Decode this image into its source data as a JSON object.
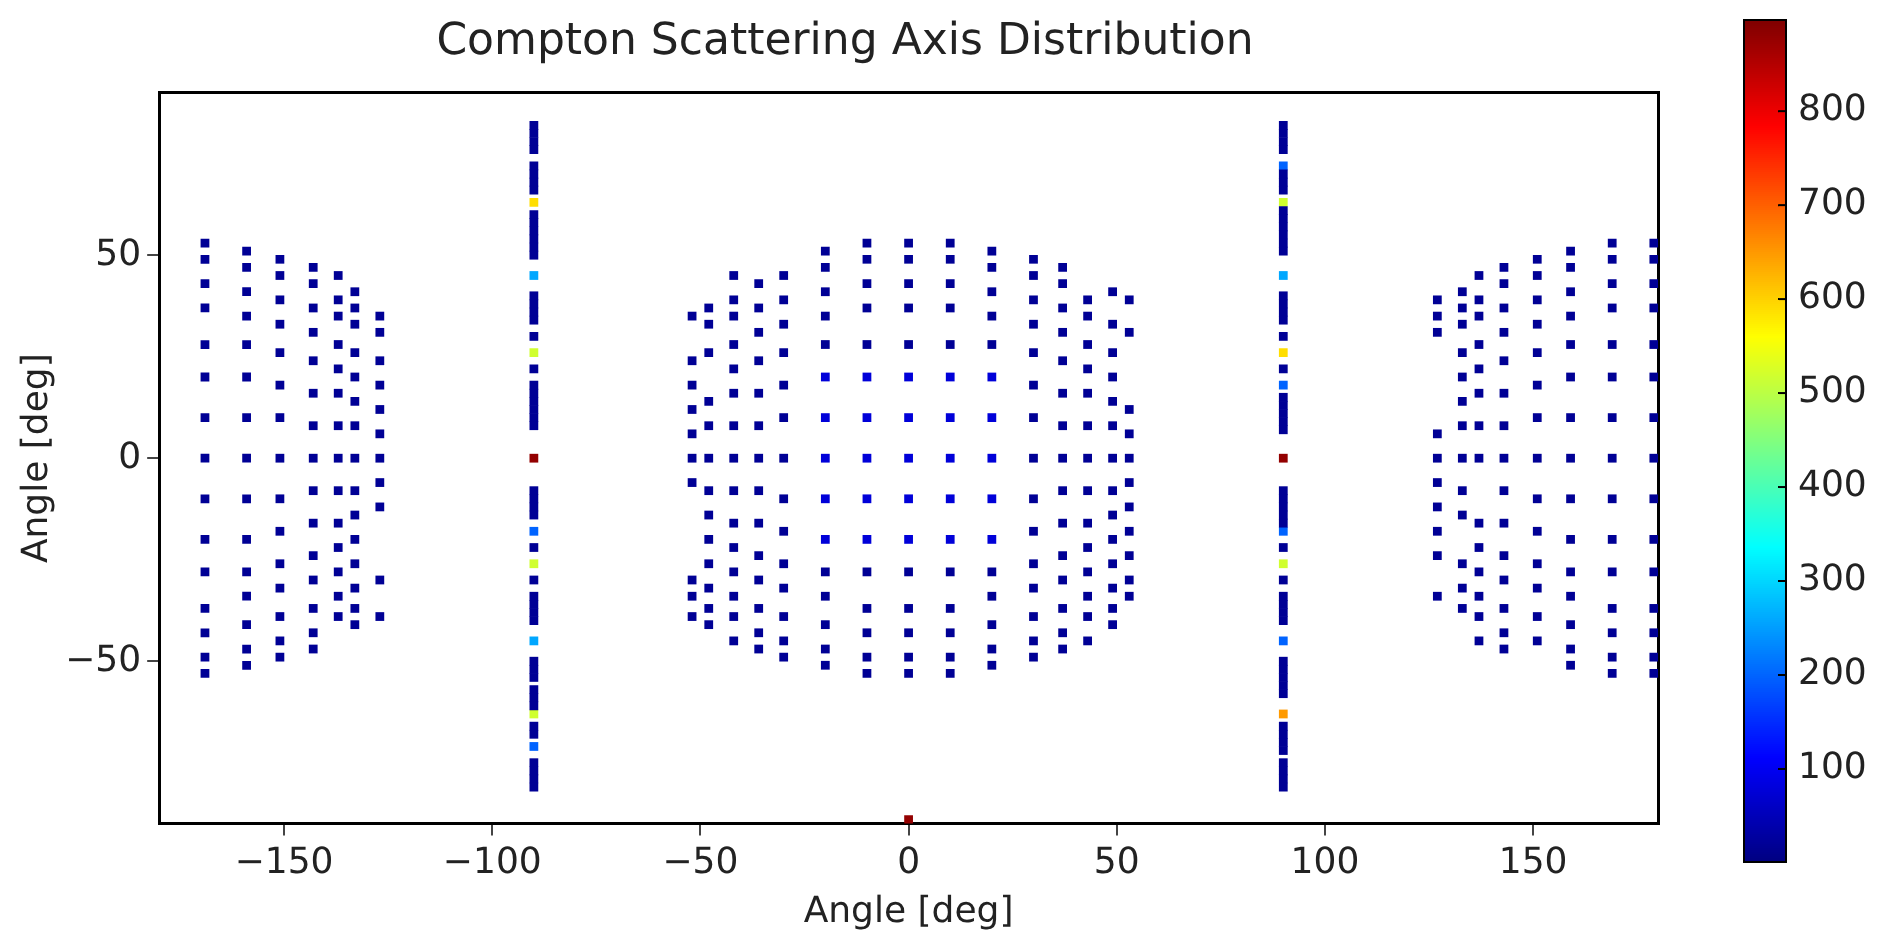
{
  "chart_data": {
    "type": "scatter",
    "title": "Compton Scattering Axis Distribution",
    "xlabel": "Angle [deg]",
    "ylabel": "Angle [deg]",
    "xlim": [
      -180,
      180
    ],
    "ylim": [
      -90,
      90
    ],
    "xticks": [
      {
        "value": -150,
        "label": "−150"
      },
      {
        "value": -100,
        "label": "−100"
      },
      {
        "value": -50,
        "label": "−50"
      },
      0,
      50,
      100,
      150
    ],
    "yticks": [
      {
        "value": -50,
        "label": "−50"
      },
      0,
      50
    ],
    "clim": [
      1,
      897
    ],
    "cticks": [
      100,
      200,
      300,
      400,
      500,
      600,
      700,
      800
    ],
    "grid": false,
    "legend": false,
    "marker": "square",
    "series": [
      {
        "x": [
          -169,
          -169,
          -169,
          -169,
          -169,
          -169,
          -169,
          -169,
          -169,
          -169,
          -169,
          -169,
          -169,
          -169,
          -169
        ],
        "values": [
          53,
          49,
          43,
          37,
          28,
          20,
          10,
          0,
          -10,
          -20,
          -28,
          -37,
          -43,
          -49,
          -53
        ],
        "cvalues": [
          20,
          20,
          20,
          20,
          20,
          20,
          20,
          20,
          20,
          20,
          20,
          20,
          20,
          20,
          20
        ]
      },
      {
        "x": [
          -159,
          -159,
          -159,
          -159,
          -159,
          -159,
          -159,
          -159,
          -159,
          -159,
          -159,
          -159,
          -159,
          -159,
          -159
        ],
        "values": [
          51,
          47,
          41,
          35,
          28,
          20,
          10,
          0,
          -10,
          -20,
          -28,
          -34,
          -41,
          -47,
          -51
        ],
        "cvalues": [
          20,
          20,
          20,
          20,
          20,
          20,
          20,
          20,
          20,
          20,
          20,
          20,
          20,
          20,
          20
        ]
      },
      {
        "x": [
          -151,
          -151,
          -151,
          -151,
          -151,
          -151,
          -151,
          -151,
          -151,
          -151,
          -151,
          -151,
          -151,
          -151,
          -151
        ],
        "values": [
          49,
          45,
          39,
          33,
          26,
          18,
          10,
          0,
          -10,
          -18,
          -26,
          -32,
          -39,
          -45,
          -49
        ],
        "cvalues": [
          20,
          20,
          20,
          20,
          20,
          20,
          20,
          20,
          20,
          20,
          20,
          20,
          20,
          20,
          20
        ]
      },
      {
        "x": [
          -143,
          -143,
          -143,
          -143,
          -143,
          -143,
          -143,
          -143,
          -143,
          -143,
          -143,
          -143,
          -143,
          -143,
          -143
        ],
        "values": [
          47,
          43,
          37,
          31,
          24,
          16,
          8,
          0,
          -8,
          -16,
          -24,
          -30,
          -37,
          -43,
          -47
        ],
        "cvalues": [
          20,
          20,
          20,
          20,
          20,
          20,
          20,
          20,
          20,
          20,
          20,
          20,
          20,
          20,
          20
        ]
      },
      {
        "x": [
          -137,
          -137,
          -137,
          -137,
          -137,
          -137,
          -137,
          -137,
          -137,
          -137,
          -137,
          -137,
          -137,
          -137
        ],
        "values": [
          45,
          39,
          35,
          28,
          22,
          16,
          8,
          0,
          -8,
          -16,
          -22,
          -28,
          -34,
          -39
        ],
        "cvalues": [
          20,
          20,
          20,
          20,
          20,
          20,
          20,
          20,
          20,
          20,
          20,
          20,
          20,
          20
        ]
      },
      {
        "x": [
          -133,
          -133,
          -133,
          -133,
          -133,
          -133,
          -133,
          -133,
          -133,
          -133,
          -133,
          -133,
          -133,
          -133,
          -133
        ],
        "values": [
          41,
          37,
          33,
          26,
          20,
          14,
          8,
          0,
          -8,
          -14,
          -20,
          -26,
          -32,
          -37,
          -41
        ],
        "cvalues": [
          20,
          20,
          20,
          20,
          20,
          20,
          20,
          20,
          20,
          20,
          20,
          20,
          20,
          20,
          20
        ]
      },
      {
        "x": [
          -127,
          -127,
          -127,
          -127,
          -127,
          -127,
          -127,
          -127,
          -127,
          -127,
          -127
        ],
        "values": [
          35,
          31,
          24,
          18,
          12,
          6,
          0,
          -6,
          -12,
          -30,
          -39
        ],
        "cvalues": [
          20,
          20,
          20,
          20,
          20,
          20,
          20,
          20,
          20,
          20,
          20
        ]
      },
      {
        "x": [
          -90,
          -90,
          -90,
          -90,
          -90,
          -90,
          -90,
          -90,
          -90,
          -90,
          -90,
          -90,
          -90,
          -90,
          -90,
          -90,
          -90,
          -90,
          -90,
          -90,
          -90,
          -90,
          -90,
          -90,
          -90,
          -90,
          -90,
          -90,
          -90,
          -90,
          -90,
          -90,
          -90,
          -90,
          -90,
          -90,
          -90,
          -90,
          -90,
          -90,
          -90,
          -90,
          -90,
          -90,
          -90,
          -90,
          -90,
          -90
        ],
        "values": [
          82,
          80,
          78,
          76,
          72,
          70,
          68,
          66,
          60,
          58,
          56,
          54,
          52,
          50,
          40,
          38,
          36,
          34,
          30,
          22,
          18,
          16,
          14,
          12,
          10,
          8,
          -8,
          -10,
          -12,
          -14,
          -22,
          -30,
          -34,
          -36,
          -38,
          -40,
          -50,
          -52,
          -54,
          -57,
          -59,
          -61,
          -66,
          -68,
          -75,
          -77,
          -79,
          -81
        ],
        "cvalues": [
          20,
          20,
          20,
          20,
          20,
          20,
          20,
          20,
          20,
          20,
          20,
          20,
          20,
          20,
          20,
          20,
          20,
          20,
          20,
          20,
          20,
          20,
          20,
          20,
          20,
          20,
          20,
          20,
          20,
          20,
          20,
          20,
          20,
          20,
          20,
          20,
          20,
          20,
          20,
          20,
          20,
          20,
          20,
          20,
          20,
          20,
          20,
          20
        ]
      },
      {
        "x": [
          -52,
          -52,
          -52,
          -52,
          -52,
          -52,
          -52,
          -52,
          -52,
          -52
        ],
        "values": [
          35,
          24,
          18,
          12,
          6,
          0,
          -6,
          -30,
          -34,
          -39
        ],
        "cvalues": [
          20,
          20,
          20,
          20,
          20,
          20,
          20,
          20,
          20,
          20
        ]
      },
      {
        "x": [
          -48,
          -48,
          -48,
          -48,
          -48,
          -48,
          -48,
          -48,
          -48,
          -48,
          -48,
          -48,
          -48
        ],
        "values": [
          37,
          33,
          26,
          14,
          8,
          0,
          -8,
          -14,
          -20,
          -26,
          -32,
          -37,
          -41
        ],
        "cvalues": [
          20,
          20,
          20,
          20,
          20,
          20,
          20,
          20,
          20,
          20,
          20,
          20,
          20
        ]
      },
      {
        "x": [
          -42,
          -42,
          -42,
          -42,
          -42,
          -42,
          -42,
          -42,
          -42,
          -42,
          -42,
          -42,
          -42,
          -42,
          -42
        ],
        "values": [
          45,
          39,
          35,
          28,
          22,
          16,
          8,
          0,
          -8,
          -16,
          -22,
          -28,
          -34,
          -39,
          -45
        ],
        "cvalues": [
          20,
          20,
          20,
          20,
          20,
          20,
          20,
          20,
          20,
          20,
          20,
          20,
          20,
          20,
          20
        ]
      },
      {
        "x": [
          -36,
          -36,
          -36,
          -36,
          -36,
          -36,
          -36,
          -36,
          -36,
          -36,
          -36,
          -36,
          -36,
          -36
        ],
        "values": [
          43,
          37,
          31,
          24,
          16,
          8,
          0,
          -8,
          -16,
          -24,
          -30,
          -37,
          -43,
          -47
        ],
        "cvalues": [
          20,
          20,
          20,
          20,
          20,
          20,
          20,
          20,
          20,
          20,
          20,
          20,
          20,
          20
        ]
      },
      {
        "x": [
          -30,
          -30,
          -30,
          -30,
          -30,
          -30,
          -30,
          -30,
          -30,
          -30,
          -30,
          -30,
          -30,
          -30
        ],
        "values": [
          45,
          39,
          33,
          26,
          18,
          10,
          0,
          -10,
          -18,
          -26,
          -32,
          -39,
          -45,
          -49
        ],
        "cvalues": [
          20,
          20,
          20,
          20,
          20,
          20,
          20,
          20,
          20,
          20,
          20,
          20,
          20,
          20
        ]
      },
      {
        "x": [
          -20,
          -20,
          -20,
          -20,
          -20,
          -20,
          -20,
          -20,
          -20,
          -20
        ],
        "values": [
          51,
          47,
          41,
          35,
          28,
          -28,
          -34,
          -41,
          -47,
          -51
        ],
        "cvalues": [
          20,
          20,
          20,
          20,
          20,
          20,
          20,
          20,
          20,
          20
        ]
      },
      {
        "x": [
          -10,
          -10,
          -10,
          -10,
          -10,
          -10,
          -10,
          -10,
          -10,
          -10
        ],
        "values": [
          53,
          49,
          43,
          37,
          28,
          -28,
          -37,
          -43,
          -49,
          -53
        ],
        "cvalues": [
          20,
          20,
          20,
          20,
          20,
          20,
          20,
          20,
          20,
          20
        ]
      },
      {
        "x": [
          0,
          0,
          0,
          0,
          0,
          0,
          0,
          0,
          0,
          0
        ],
        "values": [
          53,
          49,
          43,
          37,
          28,
          -28,
          -37,
          -43,
          -49,
          -53
        ],
        "cvalues": [
          20,
          20,
          20,
          20,
          20,
          20,
          20,
          20,
          20,
          20
        ]
      },
      {
        "x": [
          10,
          10,
          10,
          10,
          10,
          10,
          10,
          10,
          10,
          10
        ],
        "values": [
          53,
          49,
          43,
          37,
          28,
          -28,
          -37,
          -43,
          -49,
          -53
        ],
        "cvalues": [
          20,
          20,
          20,
          20,
          20,
          20,
          20,
          20,
          20,
          20
        ]
      },
      {
        "x": [
          20,
          20,
          20,
          20,
          20,
          20,
          20,
          20,
          20,
          20
        ],
        "values": [
          51,
          47,
          41,
          35,
          28,
          -28,
          -34,
          -41,
          -47,
          -51
        ],
        "cvalues": [
          20,
          20,
          20,
          20,
          20,
          20,
          20,
          20,
          20,
          20
        ]
      },
      {
        "x": [
          -20,
          -20,
          -20,
          -20,
          -20,
          -10,
          -10,
          -10,
          -10,
          -10,
          0,
          0,
          0,
          0,
          0,
          10,
          10,
          10,
          10,
          10,
          20,
          20,
          20,
          20,
          20
        ],
        "values": [
          20,
          10,
          0,
          -10,
          -20,
          20,
          10,
          0,
          -10,
          -20,
          20,
          10,
          0,
          -10,
          -20,
          20,
          10,
          0,
          -10,
          -20,
          20,
          10,
          0,
          -10,
          -20
        ],
        "cvalues": [
          80,
          80,
          80,
          80,
          80,
          80,
          80,
          80,
          80,
          80,
          80,
          80,
          80,
          80,
          80,
          80,
          80,
          80,
          80,
          80,
          80,
          80,
          80,
          80,
          80
        ]
      },
      {
        "x": [
          30,
          30,
          30,
          30,
          30,
          30,
          30,
          30,
          30,
          30,
          30,
          30,
          30,
          30,
          30
        ],
        "values": [
          49,
          45,
          39,
          33,
          26,
          18,
          10,
          0,
          -10,
          -18,
          -26,
          -32,
          -39,
          -45,
          -49
        ],
        "cvalues": [
          20,
          20,
          20,
          20,
          20,
          20,
          20,
          20,
          20,
          20,
          20,
          20,
          20,
          20,
          20
        ]
      },
      {
        "x": [
          37,
          37,
          37,
          37,
          37,
          37,
          37,
          37,
          37,
          37,
          37,
          37,
          37,
          37,
          37
        ],
        "values": [
          47,
          43,
          37,
          31,
          24,
          16,
          8,
          0,
          -8,
          -16,
          -24,
          -30,
          -37,
          -43,
          -47
        ],
        "cvalues": [
          20,
          20,
          20,
          20,
          20,
          20,
          20,
          20,
          20,
          20,
          20,
          20,
          20,
          20,
          20
        ]
      },
      {
        "x": [
          43,
          43,
          43,
          43,
          43,
          43,
          43,
          43,
          43,
          43,
          43,
          43,
          43,
          43
        ],
        "values": [
          39,
          35,
          28,
          22,
          16,
          8,
          0,
          -8,
          -16,
          -22,
          -28,
          -34,
          -39,
          -45
        ],
        "cvalues": [
          20,
          20,
          20,
          20,
          20,
          20,
          20,
          20,
          20,
          20,
          20,
          20,
          20,
          20
        ]
      },
      {
        "x": [
          49,
          49,
          49,
          49,
          49,
          49,
          49,
          49,
          49,
          49,
          49,
          49,
          49,
          49
        ],
        "values": [
          41,
          33,
          26,
          20,
          14,
          8,
          0,
          -8,
          -14,
          -20,
          -26,
          -32,
          -37,
          -41
        ],
        "cvalues": [
          20,
          20,
          20,
          20,
          20,
          20,
          20,
          20,
          20,
          20,
          20,
          20,
          20,
          20
        ]
      },
      {
        "x": [
          53,
          53,
          53,
          53,
          53,
          53,
          53,
          53,
          53,
          53,
          53
        ],
        "values": [
          39,
          31,
          12,
          6,
          0,
          -6,
          -12,
          -18,
          -24,
          -30,
          -34
        ],
        "cvalues": [
          20,
          20,
          20,
          20,
          20,
          20,
          20,
          20,
          20,
          20,
          20
        ]
      },
      {
        "x": [
          90,
          90,
          90,
          90,
          90,
          90,
          90,
          90,
          90,
          90,
          90,
          90,
          90,
          90,
          90,
          90,
          90,
          90,
          90,
          90,
          90,
          90,
          90,
          90,
          90,
          90,
          90,
          90,
          90,
          90,
          90,
          90,
          90,
          90,
          90,
          90,
          90,
          90,
          90,
          90,
          90,
          90,
          90,
          90,
          90,
          90,
          90,
          90
        ],
        "values": [
          82,
          80,
          78,
          76,
          70,
          68,
          66,
          61,
          59,
          57,
          55,
          53,
          51,
          40,
          38,
          36,
          34,
          30,
          22,
          15,
          13,
          11,
          9,
          7,
          -8,
          -10,
          -12,
          -14,
          -16,
          -22,
          -30,
          -34,
          -36,
          -38,
          -40,
          -50,
          -52,
          -54,
          -56,
          -58,
          -66,
          -68,
          -70,
          -72,
          -75,
          -77,
          -79,
          -81
        ],
        "cvalues": [
          20,
          20,
          20,
          20,
          20,
          20,
          20,
          20,
          20,
          20,
          20,
          20,
          20,
          20,
          20,
          20,
          20,
          20,
          20,
          20,
          20,
          20,
          20,
          20,
          20,
          20,
          20,
          20,
          20,
          20,
          20,
          20,
          20,
          20,
          20,
          20,
          20,
          20,
          20,
          20,
          20,
          20,
          20,
          20,
          20,
          20,
          20,
          20
        ]
      },
      {
        "x": [
          -90,
          -90,
          90,
          90,
          90,
          90
        ],
        "values": [
          -18,
          -71,
          72,
          18,
          -18,
          -45
        ],
        "cvalues": [
          200,
          200,
          200,
          200,
          200,
          200
        ]
      },
      {
        "x": [
          -90,
          -90,
          90
        ],
        "values": [
          45,
          -45,
          45
        ],
        "cvalues": [
          260,
          260,
          260
        ]
      },
      {
        "x": [
          -90,
          -90,
          -90,
          90,
          90
        ],
        "values": [
          26,
          -26,
          -63,
          63,
          -26
        ],
        "cvalues": [
          520,
          520,
          520,
          520,
          520
        ]
      },
      {
        "x": [
          -90,
          90
        ],
        "values": [
          63,
          26
        ],
        "cvalues": [
          590,
          590
        ]
      },
      {
        "x": [
          90
        ],
        "values": [
          -63
        ],
        "cvalues": [
          650
        ]
      },
      {
        "x": [
          -90,
          90,
          0
        ],
        "values": [
          0,
          0,
          -89
        ],
        "cvalues": [
          880,
          880,
          880
        ]
      },
      {
        "x": [
          127,
          127,
          127,
          127,
          127,
          127,
          127,
          127,
          127,
          127
        ],
        "values": [
          39,
          35,
          31,
          6,
          0,
          -6,
          -12,
          -18,
          -24,
          -34
        ],
        "cvalues": [
          20,
          20,
          20,
          20,
          20,
          20,
          20,
          20,
          20,
          20
        ]
      },
      {
        "x": [
          133,
          133,
          133,
          133,
          133,
          133,
          133,
          133,
          133,
          133,
          133,
          133,
          133
        ],
        "values": [
          41,
          37,
          33,
          26,
          20,
          14,
          8,
          0,
          -8,
          -14,
          -26,
          -32,
          -37
        ],
        "cvalues": [
          20,
          20,
          20,
          20,
          20,
          20,
          20,
          20,
          20,
          20,
          20,
          20,
          20
        ]
      },
      {
        "x": [
          137,
          137,
          137,
          137,
          137,
          137,
          137,
          137,
          137,
          137,
          137,
          137,
          137,
          137
        ],
        "values": [
          45,
          39,
          35,
          28,
          22,
          16,
          8,
          0,
          -16,
          -22,
          -28,
          -34,
          -39,
          -45
        ],
        "cvalues": [
          20,
          20,
          20,
          20,
          20,
          20,
          20,
          20,
          20,
          20,
          20,
          20,
          20,
          20
        ]
      },
      {
        "x": [
          143,
          143,
          143,
          143,
          143,
          143,
          143,
          143,
          143,
          143,
          143,
          143,
          143,
          143,
          143
        ],
        "values": [
          47,
          43,
          37,
          31,
          24,
          16,
          8,
          0,
          -8,
          -16,
          -24,
          -30,
          -37,
          -43,
          -47
        ],
        "cvalues": [
          20,
          20,
          20,
          20,
          20,
          20,
          20,
          20,
          20,
          20,
          20,
          20,
          20,
          20,
          20
        ]
      },
      {
        "x": [
          151,
          151,
          151,
          151,
          151,
          151,
          151,
          151,
          151,
          151,
          151,
          151,
          151,
          151
        ],
        "values": [
          49,
          45,
          39,
          33,
          26,
          18,
          10,
          0,
          -10,
          -18,
          -26,
          -32,
          -39,
          -45
        ],
        "cvalues": [
          20,
          20,
          20,
          20,
          20,
          20,
          20,
          20,
          20,
          20,
          20,
          20,
          20,
          20
        ]
      },
      {
        "x": [
          159,
          159,
          159,
          159,
          159,
          159,
          159,
          159,
          159,
          159,
          159,
          159,
          159,
          159,
          159
        ],
        "values": [
          51,
          47,
          41,
          35,
          28,
          20,
          10,
          0,
          -10,
          -20,
          -28,
          -34,
          -41,
          -47,
          -51
        ],
        "cvalues": [
          20,
          20,
          20,
          20,
          20,
          20,
          20,
          20,
          20,
          20,
          20,
          20,
          20,
          20,
          20
        ]
      },
      {
        "x": [
          169,
          169,
          169,
          169,
          169,
          169,
          169,
          169,
          169,
          169,
          169,
          169,
          169,
          169,
          169
        ],
        "values": [
          53,
          49,
          43,
          37,
          28,
          20,
          10,
          0,
          -10,
          -20,
          -28,
          -37,
          -43,
          -49,
          -53
        ],
        "cvalues": [
          20,
          20,
          20,
          20,
          20,
          20,
          20,
          20,
          20,
          20,
          20,
          20,
          20,
          20,
          20
        ]
      },
      {
        "x": [
          179,
          179,
          179,
          179,
          179,
          179,
          179,
          179,
          179,
          179,
          179,
          179,
          179,
          179,
          179
        ],
        "values": [
          53,
          49,
          43,
          37,
          28,
          20,
          10,
          0,
          -10,
          -20,
          -28,
          -37,
          -43,
          -49,
          -53
        ],
        "cvalues": [
          20,
          20,
          20,
          20,
          20,
          20,
          20,
          20,
          20,
          20,
          20,
          20,
          20,
          20,
          20
        ]
      }
    ]
  }
}
